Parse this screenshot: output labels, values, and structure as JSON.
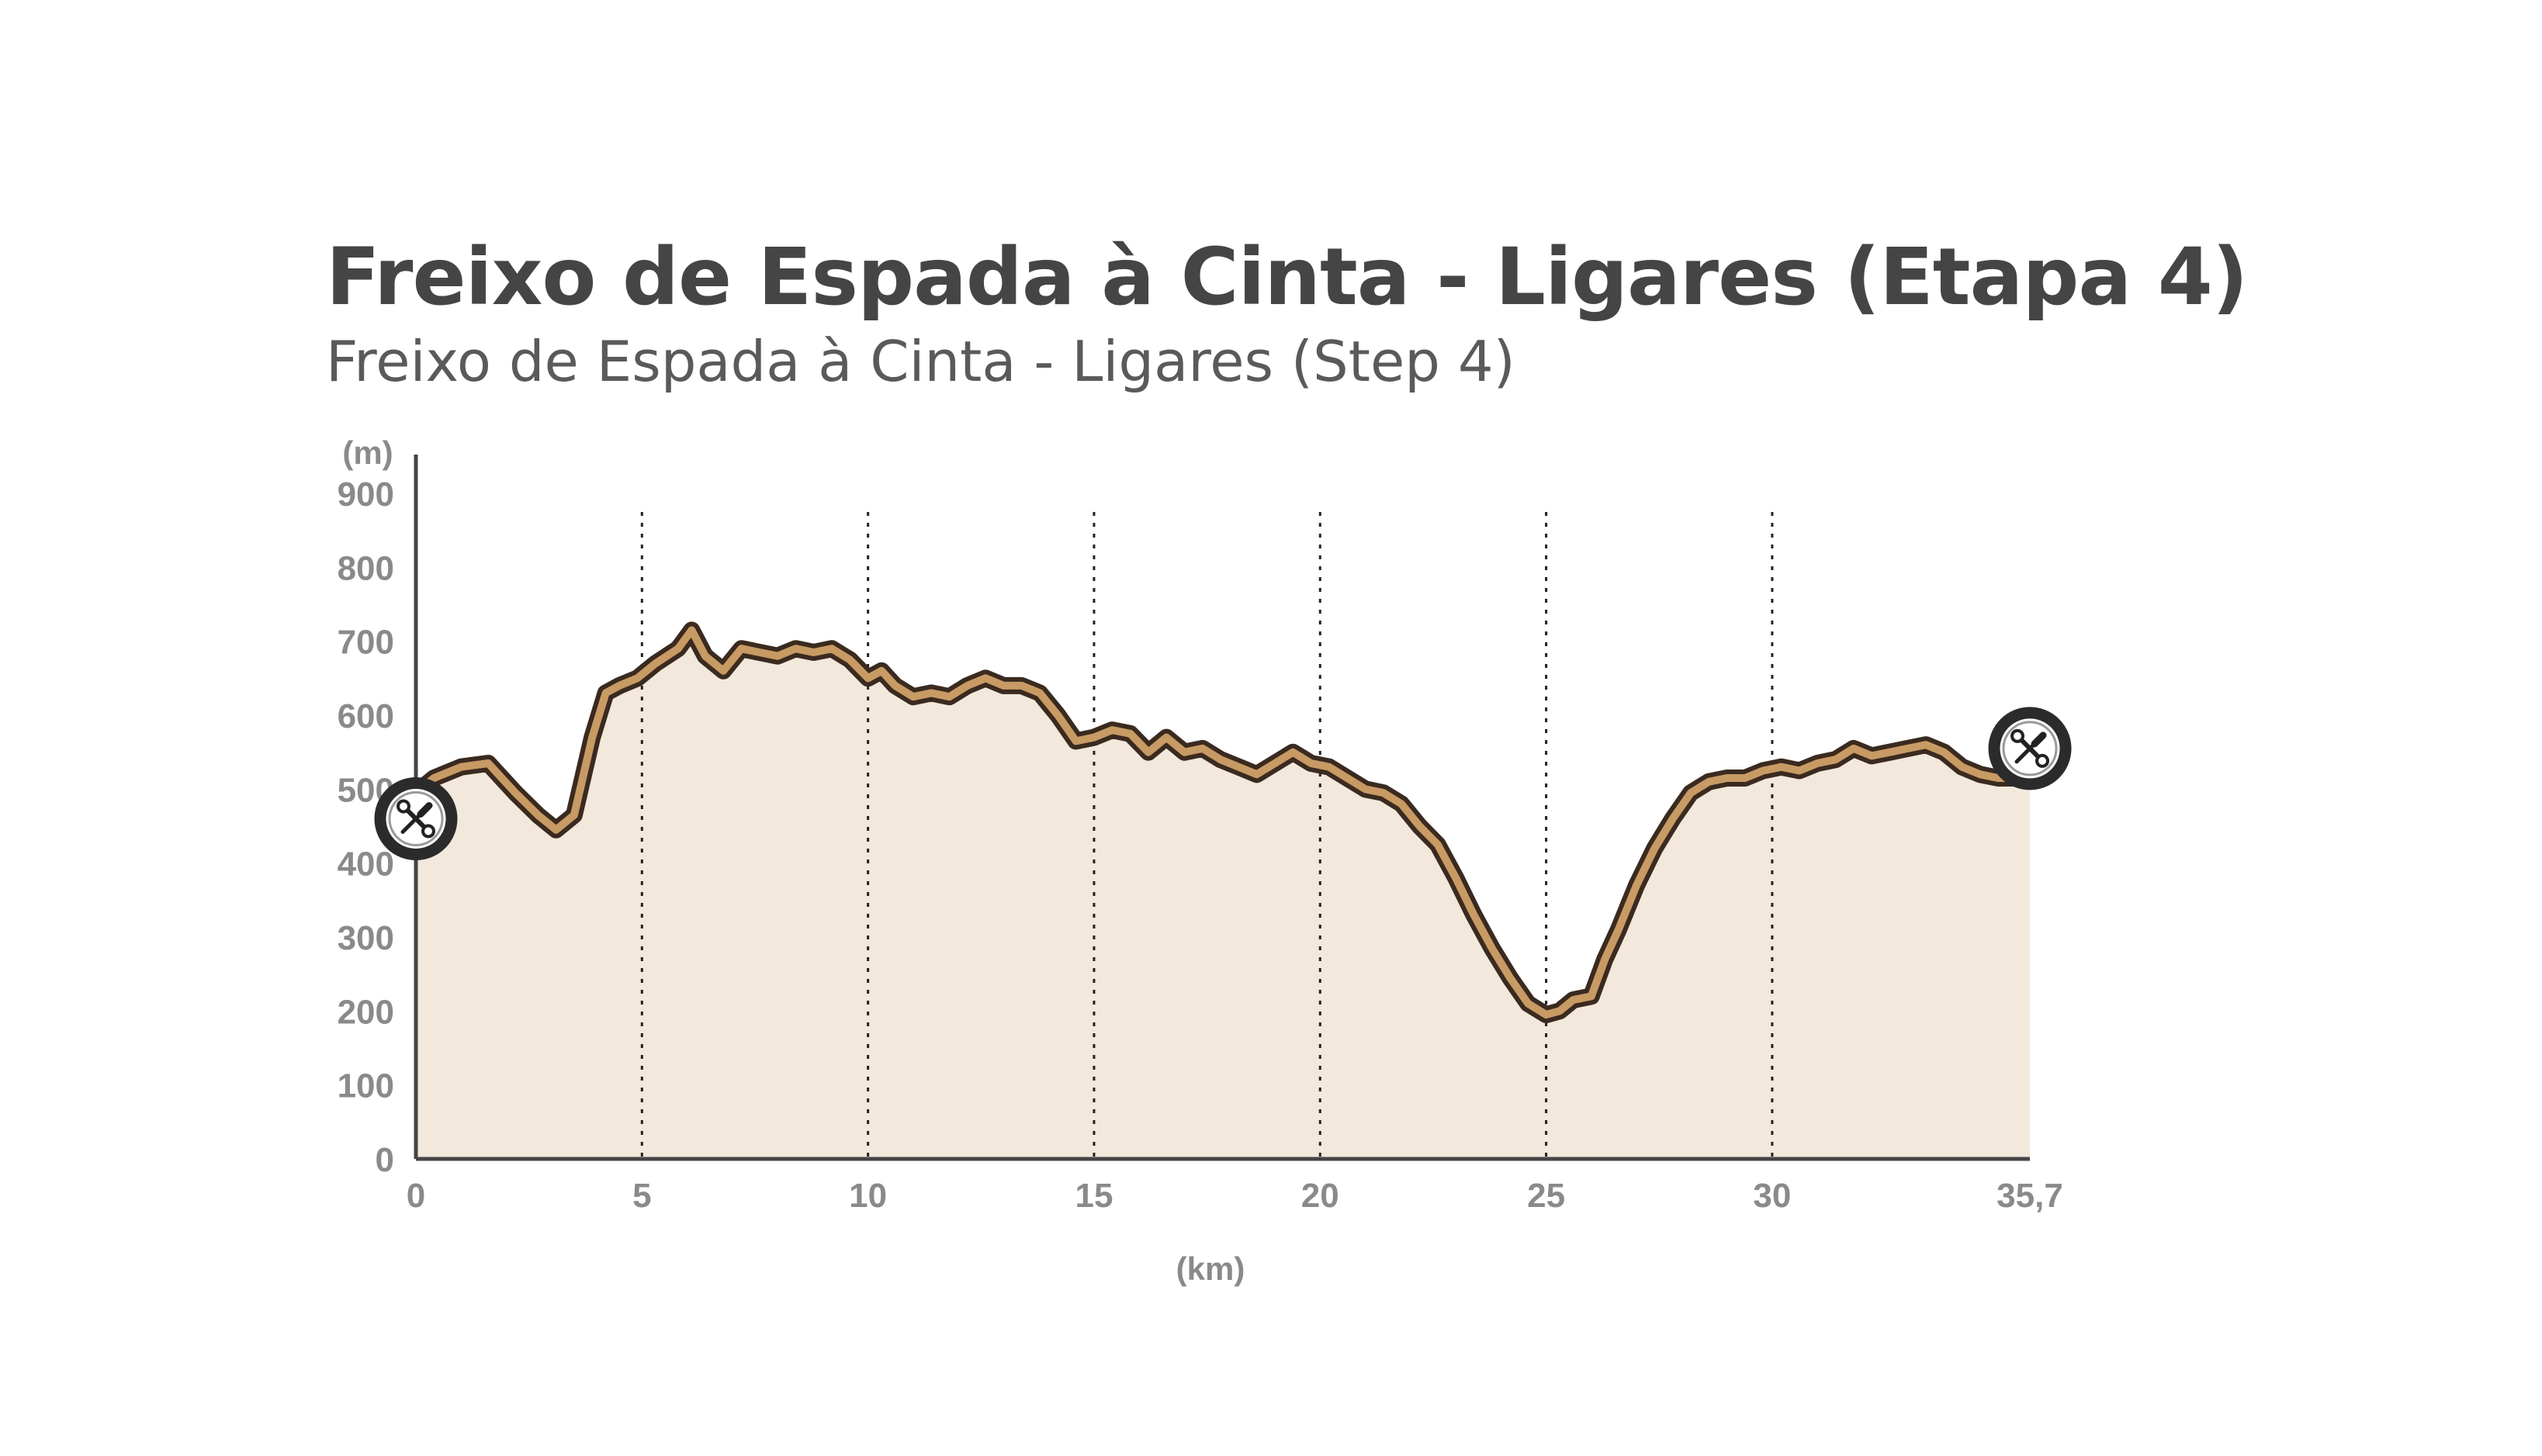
{
  "title": "Freixo de Espada à Cinta - Ligares (Etapa 4)",
  "subtitle": "Freixo de Espada à Cinta - Ligares (Step 4)",
  "chart_data": {
    "type": "area",
    "title": "Freixo de Espada à Cinta - Ligares (Etapa 4)",
    "subtitle": "Freixo de Espada à Cinta - Ligares (Step 4)",
    "xlabel": "(km)",
    "ylabel": "(m)",
    "xlim": [
      0,
      35.7
    ],
    "ylim": [
      0,
      900
    ],
    "x_ticks": [
      0,
      5,
      10,
      15,
      20,
      25,
      30,
      35.7
    ],
    "x_tick_labels": [
      "0",
      "5",
      "10",
      "15",
      "20",
      "25",
      "30",
      "35,7"
    ],
    "y_ticks": [
      0,
      100,
      200,
      300,
      400,
      500,
      600,
      700,
      800,
      900
    ],
    "y_tick_labels": [
      "0",
      "100",
      "200",
      "300",
      "400",
      "500",
      "600",
      "700",
      "800",
      "900"
    ],
    "grid": "vertical dotted lines at x ticks",
    "colors": {
      "fill": "#f2e8dc",
      "line_outer": "#3a2a1f",
      "line_inner": "#c89a64",
      "axis": "#444444",
      "marker": "#2b2b2b"
    },
    "markers": [
      {
        "x": 0,
        "y": 460,
        "icon": "wrench-screwdriver-icon"
      },
      {
        "x": 35.7,
        "y": 555,
        "icon": "wrench-screwdriver-icon"
      }
    ],
    "series": [
      {
        "x": [
          0,
          0.4,
          1.0,
          1.6,
          2.2,
          2.7,
          3.1,
          3.5,
          3.9,
          4.2,
          4.5,
          4.9,
          5.3,
          5.8,
          6.1,
          6.4,
          6.8,
          7.2,
          7.6,
          8.0,
          8.4,
          8.8,
          9.2,
          9.6,
          10.0,
          10.3,
          10.6,
          11.0,
          11.4,
          11.8,
          12.2,
          12.6,
          13.0,
          13.4,
          13.8,
          14.2,
          14.6,
          15.0,
          15.4,
          15.8,
          16.2,
          16.6,
          17.0,
          17.4,
          17.8,
          18.2,
          18.6,
          19.0,
          19.4,
          19.8,
          20.2,
          20.6,
          21.0,
          21.4,
          21.8,
          22.2,
          22.6,
          23.0,
          23.4,
          23.8,
          24.2,
          24.6,
          25.0,
          25.3,
          25.6,
          26.0,
          26.3,
          26.6,
          27.0,
          27.4,
          27.8,
          28.2,
          28.6,
          29.0,
          29.4,
          29.8,
          30.2,
          30.6,
          31.0,
          31.4,
          31.8,
          32.2,
          32.6,
          33.0,
          33.4,
          33.8,
          34.2,
          34.6,
          35.0,
          35.7
        ],
        "y": [
          495,
          515,
          530,
          535,
          495,
          465,
          445,
          465,
          570,
          630,
          640,
          650,
          670,
          690,
          715,
          680,
          660,
          690,
          685,
          680,
          690,
          685,
          690,
          675,
          650,
          660,
          640,
          625,
          630,
          625,
          640,
          650,
          640,
          640,
          630,
          600,
          565,
          570,
          580,
          575,
          550,
          570,
          550,
          555,
          540,
          530,
          520,
          535,
          550,
          535,
          530,
          515,
          500,
          495,
          480,
          450,
          425,
          380,
          330,
          285,
          245,
          210,
          195,
          200,
          215,
          220,
          270,
          310,
          370,
          420,
          460,
          495,
          510,
          515,
          515,
          525,
          530,
          525,
          535,
          540,
          555,
          545,
          550,
          555,
          560,
          550,
          530,
          520,
          515,
          515
        ]
      }
    ]
  }
}
